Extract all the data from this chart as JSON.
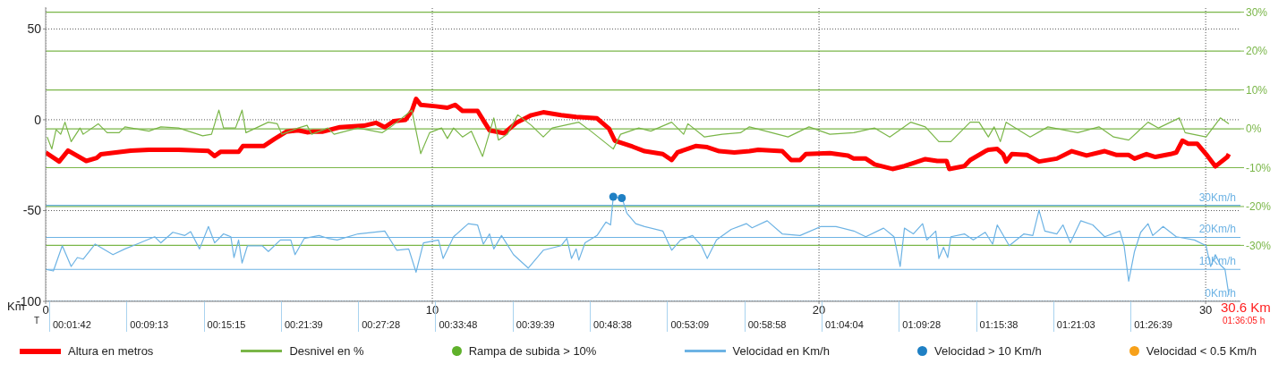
{
  "chart_data": {
    "type": "line",
    "xlabel": "Km",
    "xlim": [
      0,
      30.9
    ],
    "xticks": [
      0,
      10,
      20,
      30
    ],
    "ylim": [
      -100,
      62
    ],
    "yticks": [
      50,
      0,
      -50,
      -100
    ],
    "y2lim": [
      -44.4,
      31.3
    ],
    "y2ticks": [
      {
        "value": 30,
        "label": "30%"
      },
      {
        "value": 20,
        "label": "20%"
      },
      {
        "value": 10,
        "label": "10%"
      },
      {
        "value": 0,
        "label": "0%"
      },
      {
        "value": -10,
        "label": "-10%"
      },
      {
        "value": -20,
        "label": "-20%"
      },
      {
        "value": -30,
        "label": "-30%"
      }
    ],
    "y3lim": [
      0,
      92
    ],
    "y3ticks": [
      {
        "value": 30,
        "label": "30Km/h"
      },
      {
        "value": 20,
        "label": "20Km/h"
      },
      {
        "value": 10,
        "label": "10Km/h"
      },
      {
        "value": 0,
        "label": "0Km/h"
      }
    ],
    "grid": true,
    "legend": "bottom",
    "marker": "none",
    "annotations": [
      "30.6 Km",
      "01:36:05 h",
      "T",
      "00:01:42",
      "00:09:13",
      "00:15:15",
      "00:21:39",
      "00:27:28",
      "00:33:48",
      "00:39:39",
      "00:48:38",
      "00:53:09",
      "00:58:58",
      "01:04:04",
      "01:09:28",
      "01:15:38",
      "01:21:03",
      "01:26:39"
    ],
    "series": [
      {
        "name": "Altura en metros",
        "color": "#ff0000",
        "x": [
          0,
          0.35,
          0.58,
          1.05,
          1.32,
          1.43,
          2.2,
          2.67,
          3.44,
          4.21,
          4.37,
          4.52,
          4.99,
          5.1,
          5.64,
          5.91,
          6.22,
          6.53,
          6.76,
          6.92,
          7.15,
          7.61,
          8.23,
          8.54,
          8.77,
          9.0,
          9.31,
          9.47,
          9.58,
          9.7,
          10.09,
          10.39,
          10.59,
          10.78,
          11.17,
          11.36,
          11.48,
          11.86,
          12.17,
          12.56,
          12.87,
          13.33,
          13.72,
          14.26,
          14.57,
          14.72,
          15.18,
          15.49,
          15.96,
          16.19,
          16.34,
          16.81,
          17.11,
          17.42,
          17.81,
          18.2,
          18.43,
          19.05,
          19.28,
          19.51,
          19.66,
          20.28,
          20.75,
          20.9,
          21.21,
          21.44,
          21.9,
          22.21,
          22.75,
          23.06,
          23.3,
          23.37,
          23.76,
          23.91,
          24.3,
          24.38,
          24.61,
          24.76,
          24.84,
          24.99,
          25.38,
          25.69,
          26.15,
          26.54,
          26.92,
          27.39,
          27.7,
          28.01,
          28.16,
          28.47,
          28.7,
          29.09,
          29.24,
          29.4,
          29.55,
          29.78,
          30.01,
          30.25,
          30.56,
          30.6
        ],
        "values": [
          -18,
          -23,
          -17,
          -22.7,
          -21,
          -19,
          -17,
          -16.5,
          -16.5,
          -17.2,
          -20,
          -17.7,
          -17.7,
          -14.5,
          -14.5,
          -10.7,
          -6.6,
          -5.8,
          -6.9,
          -6.6,
          -6.6,
          -4.1,
          -3.3,
          -1.7,
          -4.1,
          -0.8,
          0,
          4.9,
          11.5,
          8.2,
          7.4,
          6.6,
          8.2,
          4.9,
          4.9,
          -1.7,
          -5.8,
          -7.4,
          -1.7,
          2.5,
          4.1,
          2.5,
          1.6,
          0.8,
          -4.9,
          -11.5,
          -14.8,
          -17.3,
          -18.9,
          -22.2,
          -18,
          -14.5,
          -15.1,
          -17.3,
          -18,
          -17.3,
          -16.5,
          -17.3,
          -22.2,
          -22.2,
          -18.9,
          -18.4,
          -19.7,
          -21.4,
          -21.4,
          -24.6,
          -27.1,
          -25.5,
          -21.7,
          -22.7,
          -22.7,
          -27.1,
          -25.5,
          -22.2,
          -17.3,
          -16.5,
          -16.1,
          -18.9,
          -23,
          -18.9,
          -19.4,
          -23,
          -21.4,
          -17.3,
          -19.7,
          -17.3,
          -19.4,
          -19.4,
          -21.4,
          -18.9,
          -20.5,
          -18.9,
          -18,
          -11.5,
          -13.2,
          -13.2,
          -18.9,
          -25.7,
          -20.5,
          -18.9
        ]
      },
      {
        "name": "Desnivel en %",
        "color": "#7ab648",
        "axis": "y2",
        "x": [
          0.04,
          0.16,
          0.27,
          0.39,
          0.5,
          0.66,
          0.89,
          0.97,
          1.36,
          1.59,
          1.9,
          2.05,
          2.67,
          2.98,
          3.44,
          4.06,
          4.29,
          4.48,
          4.6,
          4.91,
          5.08,
          5.18,
          5.76,
          5.99,
          6.11,
          6.53,
          6.76,
          6.88,
          7.3,
          7.46,
          8.08,
          8.7,
          8.93,
          9.47,
          9.7,
          9.93,
          10.24,
          10.39,
          10.55,
          10.78,
          11.01,
          11.3,
          11.59,
          11.71,
          11.94,
          12.21,
          12.56,
          12.87,
          13.1,
          13.79,
          14.1,
          14.68,
          14.87,
          15.34,
          15.65,
          16.19,
          16.5,
          16.61,
          17.04,
          17.5,
          17.97,
          18.2,
          19.2,
          19.74,
          20.28,
          20.9,
          21.44,
          21.83,
          22.37,
          22.75,
          23.1,
          23.41,
          23.91,
          24.14,
          24.38,
          24.53,
          24.69,
          24.84,
          25.46,
          25.92,
          26.69,
          27.24,
          27.62,
          28.01,
          28.51,
          28.78,
          29.32,
          29.47,
          30.01,
          30.38,
          30.6
        ],
        "values": [
          -2.1,
          -5.2,
          -0.2,
          -1.4,
          1.7,
          -3.3,
          0.2,
          -1.4,
          1.3,
          -1,
          -1,
          0.5,
          -0.6,
          0.5,
          0.2,
          -1.8,
          -1.4,
          4.8,
          0.2,
          0.2,
          4.8,
          -1,
          1.7,
          1.3,
          -1.4,
          0.2,
          0.9,
          -1.4,
          0.2,
          -1.4,
          0.2,
          -1,
          0.5,
          4.8,
          -6.4,
          -1,
          0.2,
          -2.5,
          0.2,
          -2.1,
          -0.6,
          -7.1,
          2.8,
          -2.9,
          -1.4,
          3.6,
          0.9,
          -2.1,
          0.2,
          1.7,
          -0.6,
          -5.2,
          -1.4,
          0.2,
          -0.6,
          1.7,
          -1.4,
          1.3,
          -2.1,
          -1.4,
          -1,
          0.5,
          -2.1,
          0.5,
          -1.4,
          -1,
          0.2,
          -2.1,
          1.7,
          0.5,
          -3.3,
          -3.3,
          1.7,
          1.7,
          -2.1,
          0.5,
          -3.3,
          1.7,
          -2.1,
          0.5,
          -1,
          0.5,
          -2.1,
          -2.9,
          1.7,
          0.2,
          2.8,
          -1,
          -2.1,
          2.8,
          1.3
        ]
      },
      {
        "name": "Rampa de subida > 10%",
        "color": "#5fb12b",
        "type": "scatter",
        "marker": "circle",
        "axis": "y2"
      },
      {
        "name": "Velocidad en Km/h",
        "color": "#6db3e4",
        "axis": "y3",
        "x": [
          0,
          0.2,
          0.43,
          0.66,
          0.82,
          0.97,
          1.28,
          1.74,
          2.05,
          2.36,
          2.82,
          2.98,
          3.29,
          3.6,
          3.75,
          3.98,
          4.21,
          4.37,
          4.6,
          4.79,
          4.87,
          4.99,
          5.08,
          5.22,
          5.6,
          5.76,
          6.07,
          6.34,
          6.45,
          6.69,
          7.07,
          7.3,
          7.54,
          8.08,
          8.77,
          9.08,
          9.39,
          9.58,
          9.77,
          10.16,
          10.28,
          10.55,
          10.93,
          11.17,
          11.32,
          11.48,
          11.59,
          11.79,
          12.1,
          12.48,
          12.87,
          13.33,
          13.48,
          13.6,
          13.72,
          13.79,
          13.95,
          14.26,
          14.49,
          14.61,
          14.68,
          14.91,
          15.03,
          15.26,
          15.49,
          15.96,
          16.19,
          16.42,
          16.73,
          16.96,
          17.11,
          17.35,
          17.73,
          18.12,
          18.27,
          18.66,
          19.05,
          19.51,
          20.05,
          20.44,
          20.9,
          21.21,
          21.67,
          21.94,
          22.1,
          22.21,
          22.44,
          22.68,
          22.79,
          23.02,
          23.1,
          23.22,
          23.33,
          23.41,
          23.76,
          23.99,
          24.3,
          24.49,
          24.61,
          24.92,
          25.3,
          25.53,
          25.69,
          25.84,
          26.15,
          26.31,
          26.5,
          26.77,
          27.08,
          27.39,
          27.78,
          27.89,
          28.01,
          28.16,
          28.32,
          28.51,
          28.63,
          28.9,
          29.24,
          29.71,
          30.01,
          30.13,
          30.25,
          30.38,
          30.5,
          30.6
        ],
        "values": [
          10,
          9.5,
          17.4,
          10.9,
          13.7,
          13.2,
          17.9,
          14.6,
          16.4,
          17.9,
          20.2,
          18.3,
          21.6,
          20.6,
          21.8,
          16.4,
          23.4,
          18.3,
          21.1,
          20.2,
          13.7,
          19.2,
          12,
          17.4,
          17.4,
          15.6,
          19.2,
          19.2,
          14.6,
          19.7,
          20.6,
          19.7,
          19.2,
          21.1,
          22,
          16,
          16.4,
          9.1,
          18.3,
          19.2,
          13.4,
          20.2,
          24.3,
          23.9,
          17.9,
          21.1,
          16.4,
          20.6,
          14.6,
          10.4,
          16,
          17.4,
          19.7,
          13.4,
          16.4,
          12.9,
          18.3,
          20.6,
          24.8,
          23.9,
          32.7,
          32.2,
          27.6,
          24.3,
          23.4,
          22,
          16,
          19.2,
          20.6,
          17.4,
          13.4,
          19.2,
          22.5,
          24.3,
          23,
          25.2,
          21.1,
          20.6,
          23.4,
          23.4,
          22,
          20.2,
          22.9,
          20.2,
          10.9,
          22.9,
          21.1,
          24.3,
          19.2,
          22,
          13.4,
          16.9,
          13.7,
          20.2,
          21.1,
          19.2,
          21.6,
          17.9,
          23.9,
          17.4,
          21.1,
          20.6,
          28.5,
          22,
          21.1,
          23.9,
          18.3,
          25.2,
          23.9,
          20.2,
          22,
          17.4,
          6.3,
          15.6,
          21.6,
          24.3,
          20.6,
          23.4,
          20.2,
          19.2,
          17.4,
          10.9,
          14.6,
          11.4,
          10,
          2
        ]
      },
      {
        "name": "Velocidad > 10 Km/h",
        "color": "#1f80c4",
        "type": "scatter",
        "marker": "circle",
        "axis": "y3",
        "x": [
          14.68,
          14.9
        ],
        "values": [
          32.7,
          32.3
        ]
      },
      {
        "name": "Velocidad < 0.5 Km/h",
        "color": "#f7a11a",
        "type": "scatter",
        "marker": "circle",
        "axis": "y3"
      }
    ]
  }
}
